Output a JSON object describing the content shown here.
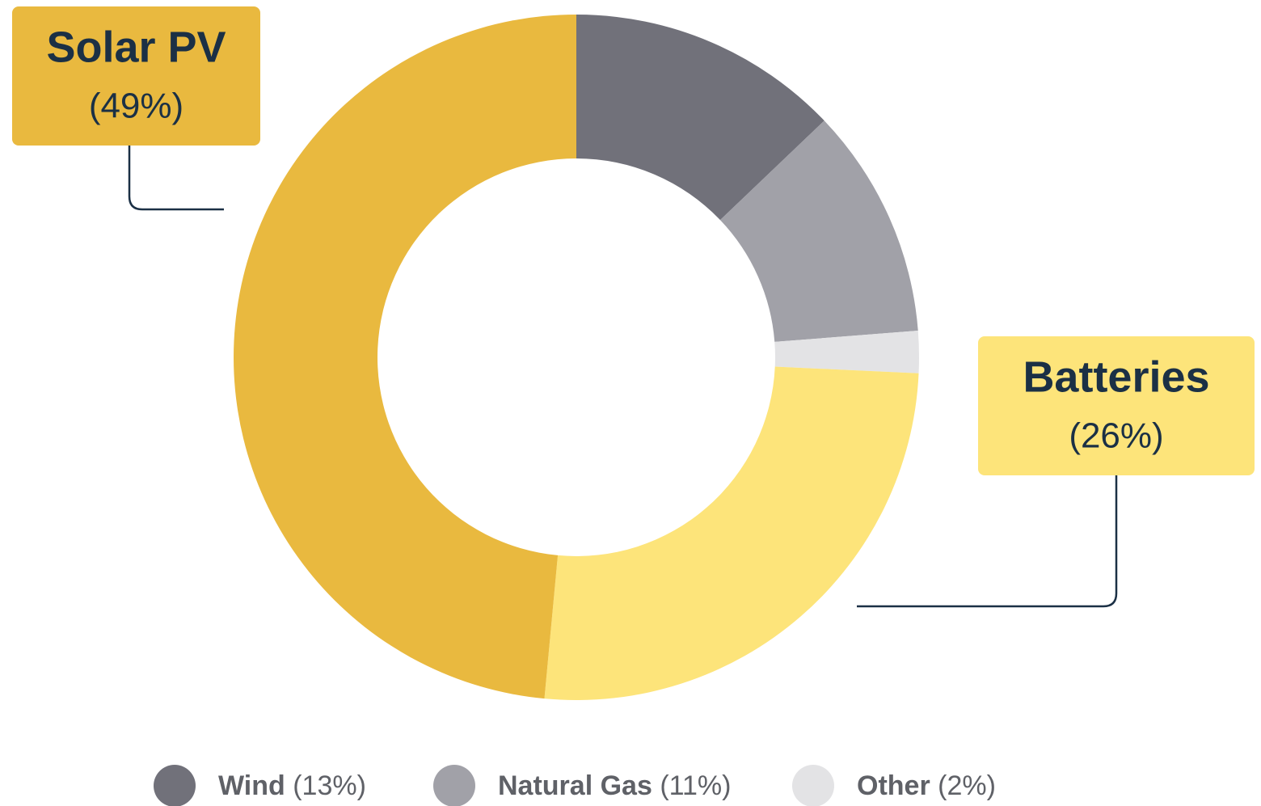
{
  "chart_data": {
    "type": "donut",
    "categories": [
      "Wind",
      "Natural Gas",
      "Other",
      "Batteries",
      "Solar PV"
    ],
    "values": [
      13,
      11,
      2,
      26,
      49
    ],
    "value_labels": [
      "(13%)",
      "(11%)",
      "(2%)",
      "(26%)",
      "(49%)"
    ],
    "colors": [
      "#71717a",
      "#a1a1a8",
      "#e3e3e5",
      "#fde47a",
      "#e9b93f"
    ]
  }
}
